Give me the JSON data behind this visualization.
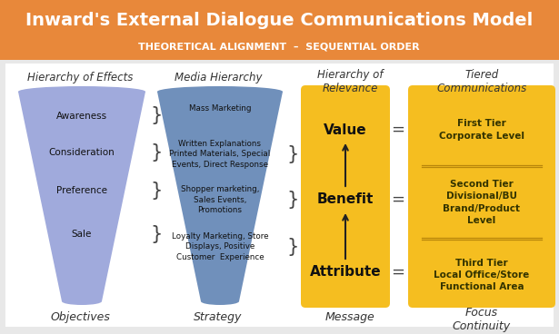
{
  "title": "Inward's External Dialogue Communications Model",
  "subtitle": "THEORETICAL ALIGNMENT  –  SEQUENTIAL ORDER",
  "title_bg": "#E8883A",
  "title_color": "#FFFFFF",
  "subtitle_color": "#FFFFFF",
  "bg_color": "#E8E8E8",
  "white_bg": "#FFFFFF",
  "col1_header": "Hierarchy of Effects",
  "col2_header": "Media Hierarchy",
  "col3_header": "Hierarchy of\nRelevance",
  "col4_header": "Tiered\nCommunications",
  "col1_footer": "Objectives",
  "col2_footer": "Strategy",
  "col3_footer": "Message",
  "col4_footer": "Focus\nContinuity",
  "funnel1_color": "#A0AADC",
  "funnel2_color": "#7090BB",
  "yellow_color": "#F5BE20",
  "col1_items": [
    "Awareness",
    "Consideration",
    "Preference",
    "Sale"
  ],
  "col2_items": [
    "Mass Marketing",
    "Written Explanations\nPrinted Materials, Special\nEvents, Direct Response",
    "Shopper marketing,\nSales Events,\nPromotions",
    "Loyalty Marketing, Store\nDisplays, Positive\nCustomer  Experience"
  ],
  "col3_items": [
    "Value",
    "Benefit",
    "Attribute"
  ],
  "col4_items": [
    "First Tier\nCorporate Level",
    "Second Tier\nDivisional/BU\nBrand/Product\nLevel",
    "Third Tier\nLocal Office/Store\nFunctional Area"
  ],
  "header_fontsize": 8.5,
  "body_fontsize": 7.5,
  "col3_fontsize": 11,
  "col4_fontsize": 7.5,
  "title_fontsize": 14,
  "subtitle_fontsize": 8,
  "footer_fontsize": 9,
  "brace_fontsize": 15,
  "eq_fontsize": 13
}
